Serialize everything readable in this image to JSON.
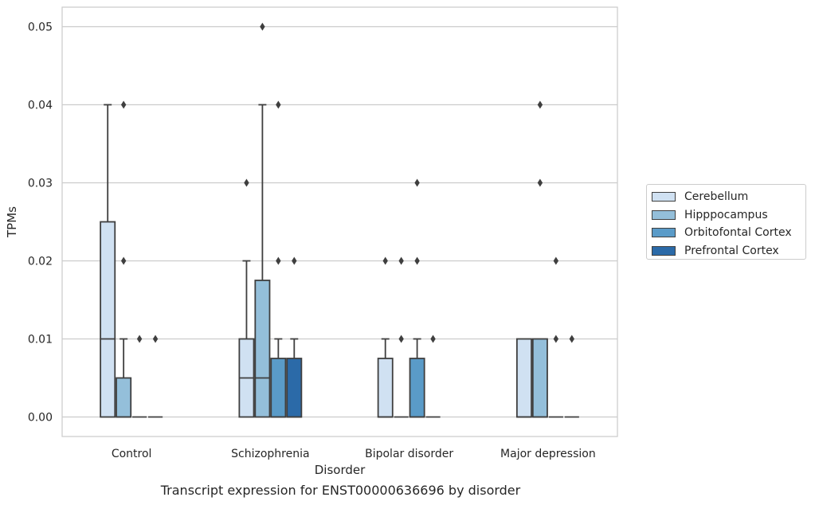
{
  "caption": "Transcript expression for ENST00000636696 by disorder",
  "chart_data": {
    "type": "box",
    "xlabel": "Disorder",
    "ylabel": "TPMs",
    "ylim": [
      -0.0025,
      0.0525
    ],
    "yticks": [
      0.0,
      0.01,
      0.02,
      0.03,
      0.04,
      0.05
    ],
    "ytick_labels": [
      "0.00",
      "0.01",
      "0.02",
      "0.03",
      "0.04",
      "0.05"
    ],
    "grid": true,
    "legend_position": "right",
    "categories": [
      "Control",
      "Schizophrenia",
      "Bipolar disorder",
      "Major depression"
    ],
    "series": [
      {
        "name": "Cerebellum",
        "color": "#d0e1f2",
        "boxes": [
          {
            "q1": 0,
            "median": 0.01,
            "q3": 0.025,
            "whislo": 0,
            "whishi": 0.04,
            "fliers": []
          },
          {
            "q1": 0,
            "median": 0.005,
            "q3": 0.01,
            "whislo": 0,
            "whishi": 0.02,
            "fliers": [
              0.03
            ]
          },
          {
            "q1": 0,
            "median": 0,
            "q3": 0.0075,
            "whislo": 0,
            "whishi": 0.01,
            "fliers": [
              0.02
            ]
          },
          {
            "q1": 0,
            "median": 0,
            "q3": 0.01,
            "whislo": 0,
            "whishi": 0.01,
            "fliers": []
          }
        ]
      },
      {
        "name": "Hipppocampus",
        "color": "#94bfda",
        "boxes": [
          {
            "q1": 0,
            "median": 0,
            "q3": 0.005,
            "whislo": 0,
            "whishi": 0.01,
            "fliers": [
              0.02,
              0.04
            ]
          },
          {
            "q1": 0,
            "median": 0.005,
            "q3": 0.0175,
            "whislo": 0,
            "whishi": 0.04,
            "fliers": [
              0.05
            ]
          },
          {
            "q1": 0,
            "median": 0,
            "q3": 0,
            "whislo": 0,
            "whishi": 0,
            "fliers": [
              0.01,
              0.02
            ]
          },
          {
            "q1": 0,
            "median": 0,
            "q3": 0.01,
            "whislo": 0,
            "whishi": 0.01,
            "fliers": [
              0.03,
              0.04
            ]
          }
        ]
      },
      {
        "name": "Orbitofontal Cortex",
        "color": "#5a9bc8",
        "boxes": [
          {
            "q1": 0,
            "median": 0,
            "q3": 0,
            "whislo": 0,
            "whishi": 0,
            "fliers": [
              0.01
            ]
          },
          {
            "q1": 0,
            "median": 0,
            "q3": 0.0075,
            "whislo": 0,
            "whishi": 0.01,
            "fliers": [
              0.02,
              0.04
            ]
          },
          {
            "q1": 0,
            "median": 0,
            "q3": 0.0075,
            "whislo": 0,
            "whishi": 0.01,
            "fliers": [
              0.02,
              0.03
            ]
          },
          {
            "q1": 0,
            "median": 0,
            "q3": 0,
            "whislo": 0,
            "whishi": 0,
            "fliers": [
              0.01,
              0.02
            ]
          }
        ]
      },
      {
        "name": "Prefrontal Cortex",
        "color": "#2b6aa8",
        "boxes": [
          {
            "q1": 0,
            "median": 0,
            "q3": 0,
            "whislo": 0,
            "whishi": 0,
            "fliers": [
              0.01
            ]
          },
          {
            "q1": 0,
            "median": 0,
            "q3": 0.0075,
            "whislo": 0,
            "whishi": 0.01,
            "fliers": [
              0.02
            ]
          },
          {
            "q1": 0,
            "median": 0,
            "q3": 0,
            "whislo": 0,
            "whishi": 0,
            "fliers": [
              0.01
            ]
          },
          {
            "q1": 0,
            "median": 0,
            "q3": 0,
            "whislo": 0,
            "whishi": 0,
            "fliers": [
              0.01
            ]
          }
        ]
      }
    ]
  }
}
